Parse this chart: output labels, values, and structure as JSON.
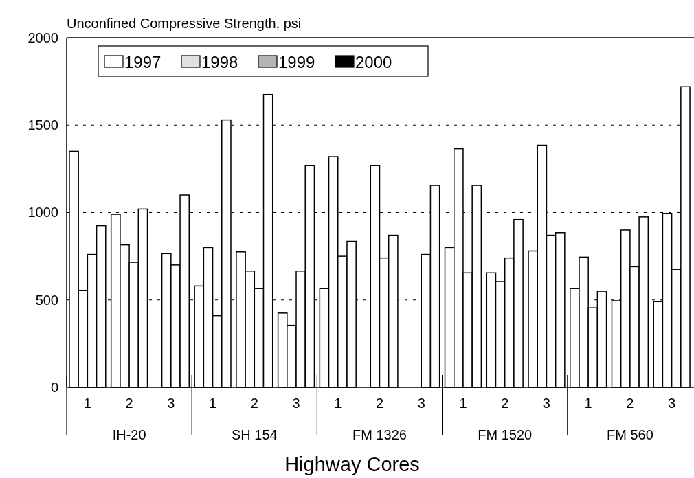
{
  "chart_data": {
    "type": "bar",
    "title": "Unconfined Compressive Strength, psi",
    "xlabel": "Highway Cores",
    "categories": [
      "1",
      "2",
      "3",
      "1",
      "2",
      "3",
      "1",
      "2",
      "3",
      "1",
      "2",
      "3",
      "1",
      "2",
      "3"
    ],
    "annotations": [
      "IH-20",
      "SH 154",
      "FM 1326",
      "FM 1520",
      "FM 560"
    ],
    "series": [
      {
        "name": "1997",
        "color": "#ffffff",
        "colors": [
          "#ffffff",
          "#ffffff",
          null,
          "#ffffff",
          "#ffffff",
          "#ffffff",
          "#ffffff",
          null,
          null,
          "#ffffff",
          "#ffffff",
          "#ffffff",
          "#ffffff",
          "#ffffff",
          "#ffffff"
        ],
        "values": [
          1350,
          990,
          null,
          580,
          775,
          425,
          565,
          null,
          null,
          800,
          655,
          780,
          565,
          495,
          490
        ]
      },
      {
        "name": "1998",
        "color": "#e0e0e0",
        "colors": [
          "#ffffff",
          "#ffffff",
          "#ffffff",
          "#ffffff",
          "#ffffff",
          "#ffffff",
          "#ffffff",
          "#ffffff",
          null,
          "#ffffff",
          "#ffffff",
          "#ffffff",
          "#ffffff",
          "#ffffff",
          "#ffffff"
        ],
        "values": [
          555,
          815,
          765,
          800,
          665,
          355,
          1320,
          1270,
          null,
          1365,
          605,
          1385,
          745,
          900,
          995
        ]
      },
      {
        "name": "1999",
        "color": "#b4b4b4",
        "colors": [
          "#ffffff",
          "#ffffff",
          "#ffffff",
          "#ffffff",
          "#ffffff",
          "#ffffff",
          "#ffffff",
          "#ffffff",
          "#ffffff",
          "#ffffff",
          "#ffffff",
          "#ffffff",
          "#ffffff",
          "#ffffff",
          "#ffffff"
        ],
        "values": [
          760,
          715,
          700,
          410,
          565,
          665,
          750,
          740,
          760,
          655,
          740,
          870,
          455,
          690,
          675
        ]
      },
      {
        "name": "2000",
        "color": "#000000",
        "colors": [
          "#ffffff",
          "#ffffff",
          "#ffffff",
          "#ffffff",
          "#ffffff",
          "#ffffff",
          "#ffffff",
          "#ffffff",
          "#ffffff",
          "#ffffff",
          "#ffffff",
          "#ffffff",
          "#ffffff",
          "#ffffff",
          "#ffffff"
        ],
        "values": [
          925,
          1020,
          1100,
          1530,
          1675,
          1270,
          835,
          870,
          1155,
          1155,
          960,
          885,
          550,
          975,
          1720
        ]
      }
    ],
    "ylim": [
      0,
      2000
    ],
    "yticks": [
      0,
      500,
      1000,
      1500,
      2000
    ],
    "grid": "y",
    "legend": "top left"
  }
}
